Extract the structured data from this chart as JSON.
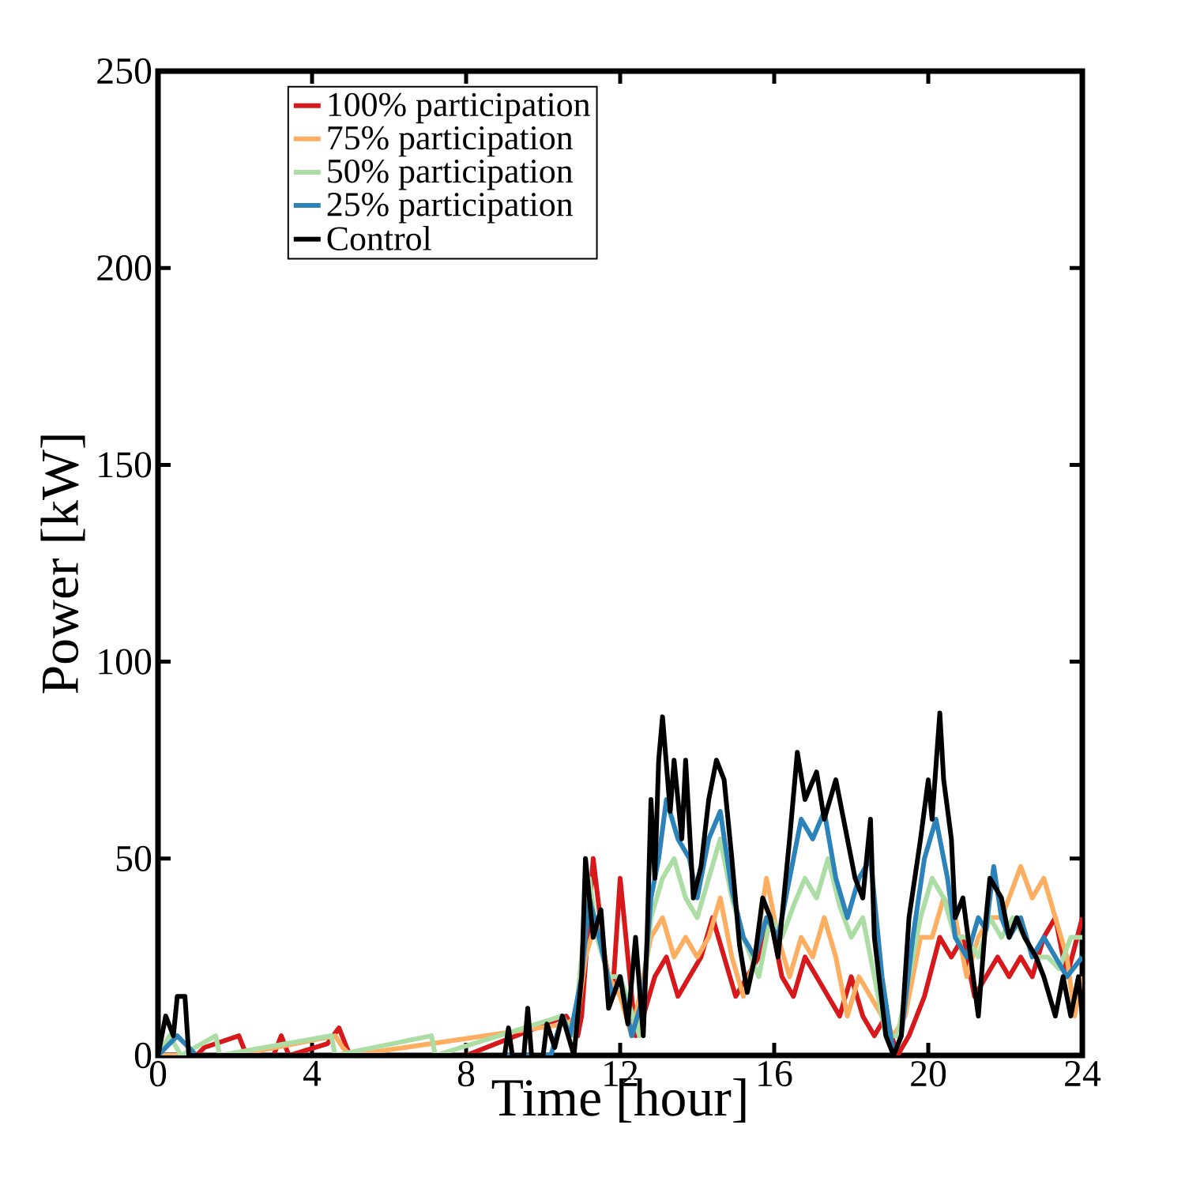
{
  "chart_data": {
    "type": "line",
    "xlabel": "Time [hour]",
    "ylabel": "Power [kW]",
    "xlim": [
      0,
      24
    ],
    "ylim": [
      0,
      250
    ],
    "xticks": [
      0,
      4,
      8,
      12,
      16,
      20,
      24
    ],
    "yticks": [
      0,
      50,
      100,
      150,
      200,
      250
    ],
    "grid": false,
    "legend": "top left",
    "marker": "none",
    "line_style": "solid",
    "series": [
      {
        "name": "100% participation",
        "color": "#d7191c",
        "x": [
          0,
          1.0,
          1.2,
          2.1,
          2.3,
          3.0,
          3.2,
          3.4,
          4.4,
          4.7,
          4.9,
          5.0,
          6.0,
          8.0,
          10.6,
          10.9,
          11.0,
          11.3,
          11.6,
          11.8,
          12.0,
          12.2,
          12.4,
          12.6,
          12.9,
          13.2,
          13.5,
          13.8,
          14.1,
          14.4,
          14.7,
          15.0,
          15.3,
          15.6,
          15.9,
          16.2,
          16.5,
          16.8,
          17.1,
          17.4,
          17.7,
          18.0,
          18.3,
          18.6,
          18.9,
          19.2,
          19.5,
          19.9,
          20.3,
          20.6,
          20.9,
          21.2,
          21.5,
          21.8,
          22.1,
          22.4,
          22.7,
          23.0,
          23.3,
          23.6,
          24.0
        ],
        "values": [
          0,
          0,
          2,
          5,
          0,
          0,
          5,
          0,
          3,
          7,
          2,
          0,
          0,
          0,
          10,
          5,
          10,
          50,
          25,
          15,
          45,
          25,
          5,
          10,
          20,
          25,
          15,
          20,
          25,
          35,
          25,
          15,
          20,
          25,
          35,
          20,
          15,
          25,
          20,
          15,
          10,
          20,
          10,
          5,
          10,
          0,
          5,
          15,
          30,
          25,
          30,
          15,
          20,
          25,
          20,
          25,
          20,
          30,
          35,
          20,
          35
        ]
      },
      {
        "name": "75% participation",
        "color": "#fdae61",
        "x": [
          0,
          2,
          4.6,
          4.8,
          5.0,
          10.6,
          10.9,
          11.1,
          11.4,
          11.7,
          12.0,
          12.3,
          12.5,
          12.8,
          13.1,
          13.4,
          13.7,
          14.0,
          14.3,
          14.6,
          14.9,
          15.2,
          15.5,
          15.8,
          16.1,
          16.4,
          16.7,
          17.0,
          17.3,
          17.6,
          17.9,
          18.2,
          18.5,
          18.8,
          19.1,
          19.4,
          19.8,
          20.1,
          20.4,
          20.7,
          21.0,
          21.3,
          21.6,
          21.9,
          22.1,
          22.4,
          22.7,
          23.0,
          23.3,
          23.6,
          23.8,
          24.0
        ],
        "values": [
          0,
          0,
          5,
          2,
          0,
          8,
          10,
          25,
          35,
          20,
          15,
          5,
          15,
          30,
          35,
          25,
          30,
          25,
          30,
          40,
          25,
          15,
          25,
          45,
          30,
          20,
          30,
          25,
          35,
          25,
          10,
          20,
          15,
          10,
          5,
          10,
          30,
          30,
          40,
          35,
          20,
          30,
          35,
          35,
          40,
          48,
          40,
          45,
          35,
          25,
          10,
          20
        ]
      },
      {
        "name": "50% participation",
        "color": "#abdda4",
        "x": [
          0,
          0.3,
          0.6,
          1.5,
          1.6,
          4.5,
          4.6,
          7.1,
          7.2,
          10.5,
          10.8,
          11.2,
          11.4,
          11.7,
          12.0,
          12.5,
          12.8,
          13.1,
          13.4,
          13.7,
          14.0,
          14.3,
          14.6,
          14.9,
          15.2,
          15.6,
          15.9,
          16.2,
          16.5,
          16.8,
          17.1,
          17.4,
          17.7,
          18.0,
          18.3,
          18.6,
          18.9,
          19.2,
          19.5,
          19.8,
          20.1,
          20.4,
          20.7,
          21.0,
          21.3,
          21.6,
          21.9,
          22.2,
          22.5,
          22.8,
          23.1,
          23.4,
          23.7,
          24.0
        ],
        "values": [
          0,
          5,
          0,
          5,
          0,
          5,
          0,
          5,
          0,
          10,
          5,
          45,
          30,
          20,
          20,
          5,
          35,
          45,
          50,
          40,
          35,
          45,
          55,
          40,
          30,
          20,
          35,
          30,
          38,
          45,
          40,
          50,
          38,
          30,
          35,
          20,
          5,
          5,
          20,
          35,
          45,
          40,
          30,
          30,
          25,
          35,
          30,
          35,
          30,
          25,
          25,
          22,
          30,
          30
        ]
      },
      {
        "name": "25% participation",
        "color": "#2b83ba",
        "x": [
          0,
          0.5,
          1,
          9,
          10.2,
          10.5,
          10.7,
          11.0,
          11.2,
          11.5,
          11.8,
          12.0,
          12.3,
          12.6,
          12.8,
          13.0,
          13.2,
          13.5,
          13.8,
          14.0,
          14.3,
          14.6,
          14.9,
          15.2,
          15.5,
          15.8,
          16.1,
          16.4,
          16.7,
          17.0,
          17.3,
          17.6,
          17.9,
          18.2,
          18.5,
          18.8,
          19.1,
          19.3,
          19.6,
          19.9,
          20.2,
          20.5,
          20.7,
          21.0,
          21.3,
          21.5,
          21.7,
          21.9,
          22.1,
          22.4,
          22.7,
          23.0,
          23.3,
          23.6,
          24.0
        ],
        "values": [
          0,
          5,
          0,
          0,
          0,
          10,
          5,
          20,
          40,
          28,
          15,
          20,
          5,
          15,
          40,
          50,
          65,
          55,
          50,
          40,
          55,
          62,
          42,
          30,
          25,
          35,
          30,
          45,
          60,
          55,
          62,
          45,
          35,
          45,
          50,
          20,
          0,
          5,
          30,
          50,
          60,
          45,
          30,
          25,
          35,
          32,
          48,
          35,
          30,
          35,
          25,
          30,
          25,
          20,
          25
        ]
      },
      {
        "name": "Control",
        "color": "#000000",
        "x": [
          0,
          0.2,
          0.4,
          0.5,
          0.7,
          0.8,
          9.0,
          9.1,
          9.2,
          9.5,
          9.6,
          9.7,
          10.0,
          10.1,
          10.3,
          10.5,
          10.8,
          11.0,
          11.1,
          11.3,
          11.5,
          11.7,
          12.0,
          12.2,
          12.4,
          12.6,
          12.7,
          12.8,
          12.9,
          13.0,
          13.1,
          13.3,
          13.4,
          13.6,
          13.7,
          13.9,
          14.1,
          14.3,
          14.5,
          14.7,
          14.9,
          15.1,
          15.3,
          15.5,
          15.7,
          15.9,
          16.1,
          16.4,
          16.6,
          16.8,
          17.1,
          17.3,
          17.6,
          17.9,
          18.1,
          18.3,
          18.5,
          18.6,
          18.9,
          19.1,
          19.3,
          19.5,
          19.8,
          20.0,
          20.1,
          20.3,
          20.4,
          20.6,
          20.7,
          20.9,
          21.1,
          21.3,
          21.5,
          21.6,
          21.9,
          22.1,
          22.3,
          22.5,
          22.8,
          23.0,
          23.3,
          23.5,
          23.7,
          23.9,
          24.0
        ],
        "values": [
          0,
          10,
          5,
          15,
          15,
          0,
          0,
          7,
          0,
          0,
          12,
          0,
          0,
          8,
          2,
          10,
          0,
          20,
          50,
          30,
          37,
          12,
          20,
          8,
          30,
          5,
          30,
          65,
          45,
          75,
          86,
          62,
          75,
          55,
          75,
          40,
          48,
          65,
          75,
          70,
          50,
          28,
          16,
          25,
          40,
          35,
          25,
          55,
          77,
          65,
          72,
          60,
          70,
          55,
          45,
          40,
          60,
          30,
          5,
          0,
          5,
          35,
          55,
          70,
          60,
          87,
          70,
          55,
          35,
          40,
          25,
          10,
          35,
          45,
          40,
          30,
          35,
          30,
          25,
          20,
          10,
          20,
          10,
          20,
          10
        ]
      }
    ]
  }
}
